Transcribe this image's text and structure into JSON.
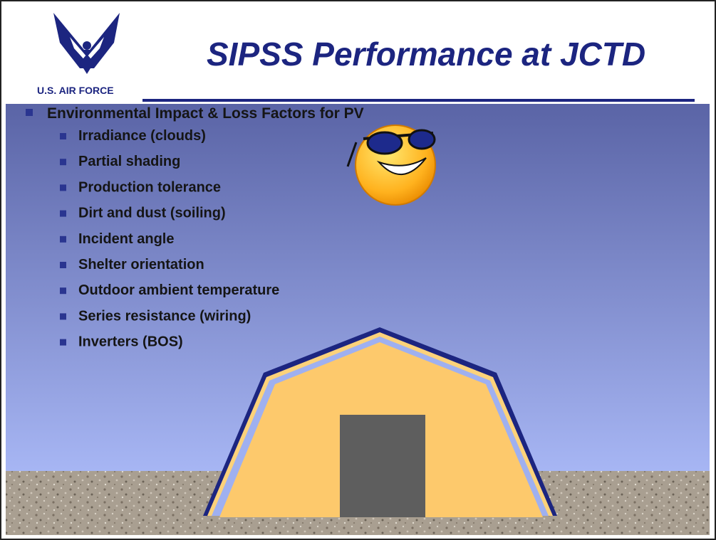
{
  "header": {
    "title": "SIPSS Performance at JCTD",
    "logo_text": "U.S. AIR FORCE"
  },
  "content": {
    "heading": "Environmental Impact & Loss Factors for PV",
    "items": [
      "Irradiance (clouds)",
      "Partial shading",
      "Production tolerance",
      "Dirt and dust (soiling)",
      "Incident angle",
      "Shelter orientation",
      "Outdoor ambient temperature",
      "Series resistance (wiring)",
      "Inverters (BOS)"
    ]
  }
}
